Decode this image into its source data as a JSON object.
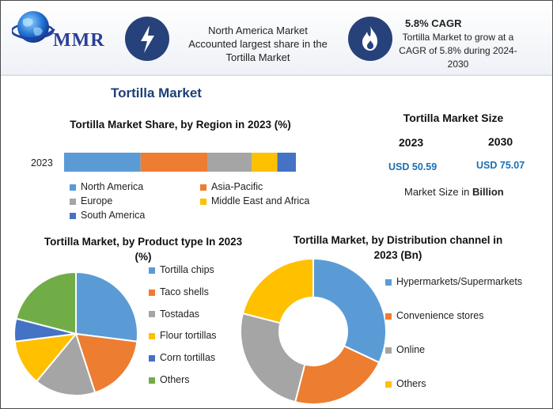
{
  "logo": {
    "text": "MMR"
  },
  "highlights": [
    {
      "icon": "lightning-bolt-icon",
      "text_lines": [
        "North America Market",
        "Accounted largest share in the",
        "Tortilla Market"
      ]
    },
    {
      "icon": "flame-icon",
      "title": "5.8% CAGR",
      "text_lines": [
        "Tortilla Market to grow at a",
        "CAGR of 5.8% during 2024-",
        "2030"
      ]
    }
  ],
  "main_title": "Tortilla Market",
  "market_size": {
    "title": "Tortilla Market Size",
    "years": [
      "2023",
      "2030"
    ],
    "values": [
      "USD 50.59",
      "USD 75.07"
    ],
    "unit_prefix": "Market Size in ",
    "unit_bold": "Billion"
  },
  "colors": {
    "blue": "#5b9bd5",
    "orange": "#ed7d31",
    "gray": "#a5a5a5",
    "yellow": "#ffc000",
    "darkblue": "#4472c4",
    "green": "#70ad47",
    "icon_bg": "#27427a"
  },
  "chart_data": [
    {
      "type": "bar",
      "orientation": "horizontal-stacked",
      "title": "Tortilla Market Share, by Region in 2023 (%)",
      "categories": [
        "2023"
      ],
      "series": [
        {
          "name": "North America",
          "values": [
            33
          ],
          "color": "#5b9bd5"
        },
        {
          "name": "Asia-Pacific",
          "values": [
            29
          ],
          "color": "#ed7d31"
        },
        {
          "name": "Europe",
          "values": [
            19
          ],
          "color": "#a5a5a5"
        },
        {
          "name": "Middle East and Africa",
          "values": [
            11
          ],
          "color": "#ffc000"
        },
        {
          "name": "South America",
          "values": [
            8
          ],
          "color": "#4472c4"
        }
      ]
    },
    {
      "type": "pie",
      "title_lines": [
        "Tortilla Market, by Product type In 2023",
        "(%)"
      ],
      "labels": [
        "Tortilla chips",
        "Taco shells",
        "Tostadas",
        "Flour tortillas",
        "Corn tortillas",
        "Others"
      ],
      "values": [
        27,
        18,
        16,
        12,
        6,
        21
      ],
      "colors": [
        "#5b9bd5",
        "#ed7d31",
        "#a5a5a5",
        "#ffc000",
        "#4472c4",
        "#70ad47"
      ]
    },
    {
      "type": "pie",
      "variant": "donut",
      "title_lines": [
        "Tortilla Market, by Distribution channel in",
        "2023 (Bn)"
      ],
      "labels": [
        "Hypermarkets/Supermarkets",
        "Convenience stores",
        "Online",
        "Others"
      ],
      "values": [
        32,
        22,
        25,
        21
      ],
      "colors": [
        "#5b9bd5",
        "#ed7d31",
        "#a5a5a5",
        "#ffc000"
      ]
    }
  ]
}
